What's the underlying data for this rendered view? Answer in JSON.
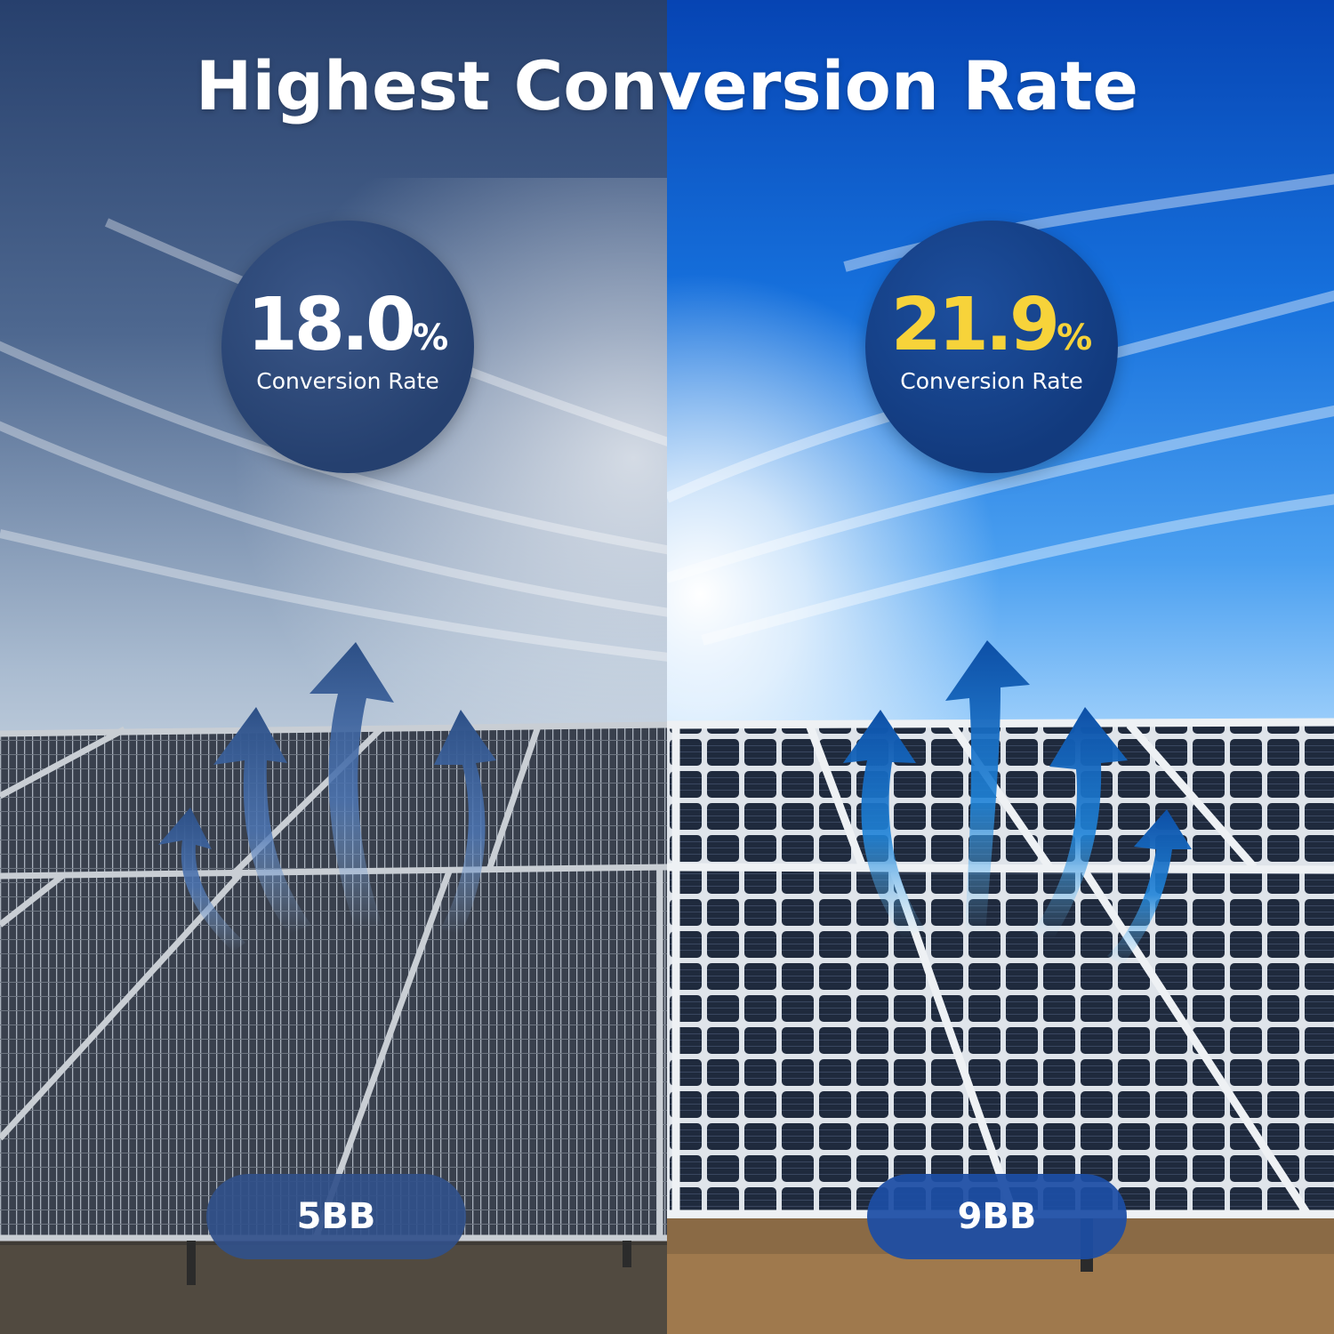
{
  "title": "Highest Conversion Rate",
  "left_panel": {
    "rate_value": "18.0",
    "rate_unit": "%",
    "rate_caption": "Conversion Rate",
    "busbar_label": "5BB",
    "sky_color": "#2b4574",
    "badge_color": "#2c4677"
  },
  "right_panel": {
    "rate_value": "21.9",
    "rate_unit": "%",
    "rate_caption": "Conversion Rate",
    "busbar_label": "9BB",
    "sky_color": "#0c58c9",
    "badge_color": "#163f86",
    "highlight_color": "#f7d33a"
  },
  "icons": [
    "heat-arrow-icon"
  ]
}
